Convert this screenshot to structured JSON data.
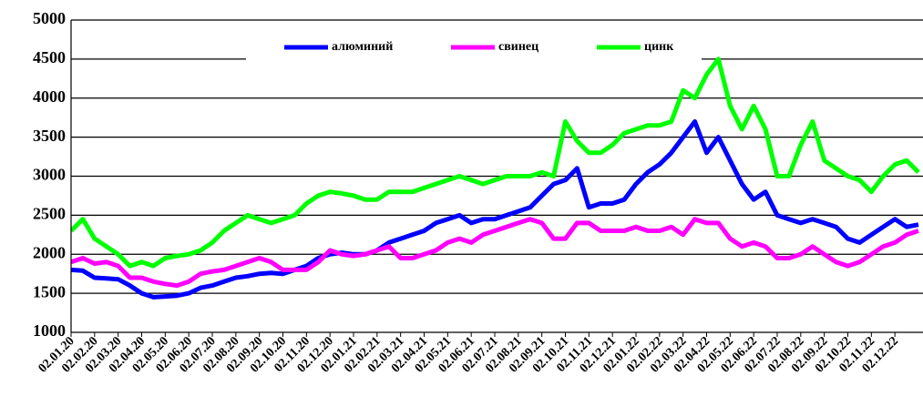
{
  "chart_data": {
    "type": "line",
    "categories": [
      "02.01.20",
      null,
      "02.02.20",
      null,
      "02.03.20",
      null,
      "02.04.20",
      null,
      "02.05.20",
      null,
      "02.06.20",
      null,
      "02.07.20",
      null,
      "02.08.20",
      null,
      "02.09.20",
      null,
      "02.10.20",
      null,
      "02.11.20",
      null,
      "02.12.20",
      null,
      "02.01.21",
      null,
      "02.02.21",
      null,
      "02.03.21",
      null,
      "02.04.21",
      null,
      "02.05.21",
      null,
      "02.06.21",
      null,
      "02.07.21",
      null,
      "02.08.21",
      null,
      "02.09.21",
      null,
      "02.10.21",
      null,
      "02.11.21",
      null,
      "02.12.21",
      null,
      "02.01.22",
      null,
      "02.02.22",
      null,
      "02.03.22",
      null,
      "02.04.22",
      null,
      "02.05.22",
      null,
      "02.06.22",
      null,
      "02.07.22",
      null,
      "02.08.22",
      null,
      "02.09.22",
      null,
      "02.10.22",
      null,
      "02.11.22",
      null,
      "02.12.22",
      null,
      null
    ],
    "series": [
      {
        "name": "алюминий",
        "color": "#0000ff",
        "values": [
          1800,
          1790,
          1700,
          1690,
          1680,
          1600,
          1500,
          1450,
          1460,
          1470,
          1500,
          1570,
          1600,
          1650,
          1700,
          1720,
          1750,
          1760,
          1750,
          1800,
          1850,
          1950,
          2000,
          2020,
          2000,
          2000,
          2050,
          2150,
          2200,
          2250,
          2300,
          2400,
          2450,
          2500,
          2400,
          2450,
          2450,
          2500,
          2550,
          2600,
          2750,
          2900,
          2950,
          3100,
          2600,
          2650,
          2650,
          2700,
          2900,
          3050,
          3150,
          3300,
          3500,
          3700,
          3300,
          3500,
          3200,
          2900,
          2700,
          2800,
          2500,
          2450,
          2400,
          2450,
          2400,
          2350,
          2200,
          2150,
          2250,
          2350,
          2450,
          2350,
          2380
        ]
      },
      {
        "name": "свинец",
        "color": "#ff00ff",
        "values": [
          1900,
          1950,
          1880,
          1900,
          1850,
          1700,
          1700,
          1650,
          1620,
          1600,
          1650,
          1750,
          1780,
          1800,
          1850,
          1900,
          1950,
          1900,
          1800,
          1800,
          1800,
          1900,
          2050,
          2000,
          1980,
          2000,
          2050,
          2100,
          1950,
          1950,
          2000,
          2050,
          2150,
          2200,
          2150,
          2250,
          2300,
          2350,
          2400,
          2450,
          2400,
          2200,
          2200,
          2400,
          2400,
          2300,
          2300,
          2300,
          2350,
          2300,
          2300,
          2350,
          2250,
          2450,
          2400,
          2400,
          2200,
          2100,
          2150,
          2100,
          1950,
          1950,
          2000,
          2100,
          2000,
          1900,
          1850,
          1900,
          2000,
          2100,
          2150,
          2250,
          2300
        ]
      },
      {
        "name": "цинк",
        "color": "#00ff00",
        "values": [
          2300,
          2450,
          2200,
          2100,
          2000,
          1850,
          1900,
          1850,
          1950,
          1980,
          2000,
          2050,
          2150,
          2300,
          2400,
          2500,
          2450,
          2400,
          2450,
          2500,
          2650,
          2750,
          2800,
          2780,
          2750,
          2700,
          2700,
          2800,
          2800,
          2800,
          2850,
          2900,
          2950,
          3000,
          2950,
          2900,
          2950,
          3000,
          3000,
          3000,
          3050,
          3000,
          3700,
          3450,
          3300,
          3300,
          3400,
          3550,
          3600,
          3650,
          3650,
          3700,
          4100,
          4000,
          4300,
          4500,
          3900,
          3600,
          3900,
          3600,
          3000,
          3000,
          3400,
          3700,
          3200,
          3100,
          3000,
          2950,
          2800,
          3000,
          3150,
          3200,
          3050
        ]
      }
    ],
    "ylim": [
      1000,
      5000
    ],
    "yticks": [
      1000,
      1500,
      2000,
      2500,
      3000,
      3500,
      4000,
      4500,
      5000
    ],
    "grid": true,
    "legend": "top"
  }
}
